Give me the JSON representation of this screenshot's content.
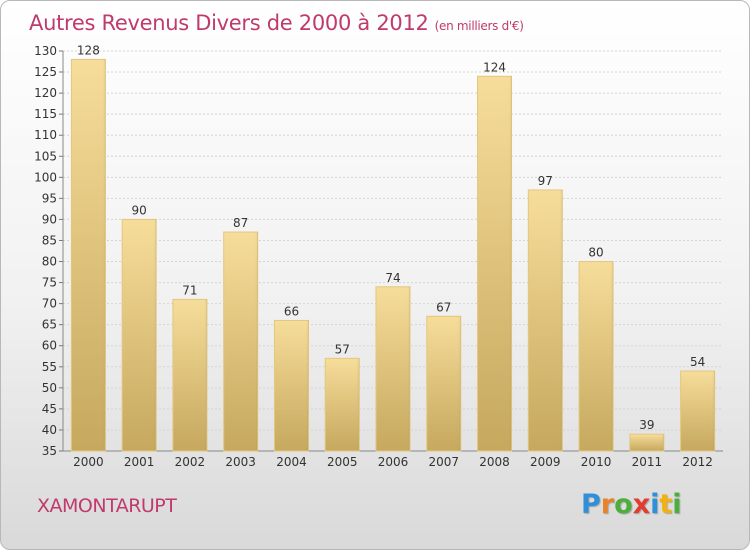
{
  "title": "Autres Revenus Divers de 2000 à 2012",
  "title_unit": "(en milliers d'€)",
  "place_name": "XAMONTARUPT",
  "logo": {
    "letters": [
      "P",
      "r",
      "o",
      "x",
      "i",
      "t",
      "i"
    ],
    "colors": [
      "#2f8fd8",
      "#e8832a",
      "#4caf3c",
      "#e23b2f",
      "#2f8fd8",
      "#f2b10f",
      "#4caf3c"
    ]
  },
  "colors": {
    "bar_light": "#f6dd9a",
    "bar_dark": "#c6a85e",
    "text": "#c03a6b",
    "axis_text": "#333333"
  },
  "chart_data": {
    "type": "bar",
    "categories": [
      "2000",
      "2001",
      "2002",
      "2003",
      "2004",
      "2005",
      "2006",
      "2007",
      "2008",
      "2009",
      "2010",
      "2011",
      "2012"
    ],
    "values": [
      128,
      90,
      71,
      87,
      66,
      57,
      74,
      67,
      124,
      97,
      80,
      39,
      54
    ],
    "ylim": [
      35,
      130
    ],
    "yticks": [
      35,
      40,
      45,
      50,
      55,
      60,
      65,
      70,
      75,
      80,
      85,
      90,
      95,
      100,
      105,
      110,
      115,
      120,
      125,
      130
    ],
    "grid": true
  }
}
